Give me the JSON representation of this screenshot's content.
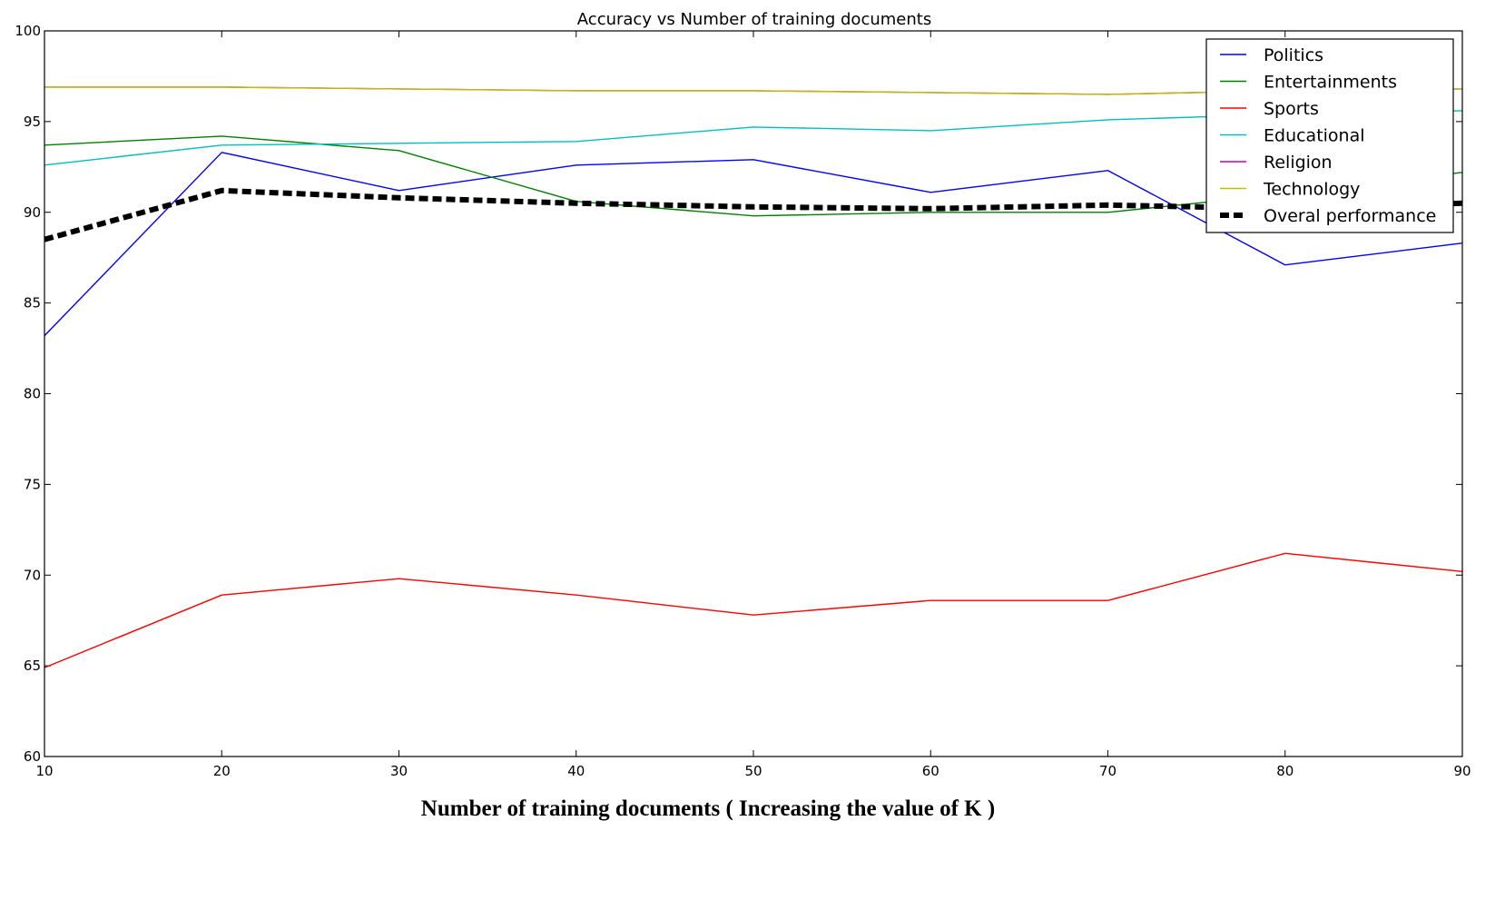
{
  "chart_data": {
    "type": "line",
    "title": "Accuracy vs Number of training documents",
    "xlabel": "Number of training documents ( Increasing the value of K )",
    "ylabel": "",
    "x": [
      10,
      20,
      30,
      40,
      50,
      60,
      70,
      80,
      90
    ],
    "xlim": [
      10,
      90
    ],
    "ylim": [
      60,
      100
    ],
    "xticks": [
      "10",
      "20",
      "30",
      "40",
      "50",
      "60",
      "70",
      "80",
      "90"
    ],
    "yticks": [
      "60",
      "65",
      "70",
      "75",
      "80",
      "85",
      "90",
      "95",
      "100"
    ],
    "grid": false,
    "legend_position": "top-right",
    "series": [
      {
        "name": "Politics",
        "color": "#0000ff",
        "style": "solid",
        "values": [
          83.2,
          93.3,
          91.2,
          92.6,
          92.9,
          91.1,
          92.3,
          87.1,
          88.3
        ]
      },
      {
        "name": "Entertainments",
        "color": "#008000",
        "style": "solid",
        "values": [
          93.7,
          94.2,
          93.4,
          90.6,
          89.8,
          90.0,
          90.0,
          91.0,
          92.2
        ]
      },
      {
        "name": "Sports",
        "color": "#ff0000",
        "style": "solid",
        "values": [
          64.9,
          68.9,
          69.8,
          68.9,
          67.8,
          68.6,
          68.6,
          71.2,
          70.2
        ]
      },
      {
        "name": "Educational",
        "color": "#00bfbf",
        "style": "solid",
        "values": [
          92.6,
          93.7,
          93.8,
          93.9,
          94.7,
          94.5,
          95.1,
          95.4,
          95.6
        ]
      },
      {
        "name": "Religion",
        "color": "#bf00bf",
        "style": "solid",
        "values": [
          96.9,
          96.9,
          96.8,
          96.7,
          96.7,
          96.6,
          96.5,
          96.7,
          96.8
        ]
      },
      {
        "name": "Technology",
        "color": "#bfbf00",
        "style": "solid",
        "values": [
          96.9,
          96.9,
          96.8,
          96.7,
          96.7,
          96.6,
          96.5,
          96.7,
          96.8
        ]
      },
      {
        "name": "Overal performance",
        "color": "#000000",
        "style": "dashed",
        "values": [
          88.5,
          91.2,
          90.8,
          90.5,
          90.3,
          90.2,
          90.4,
          90.2,
          90.5
        ]
      }
    ]
  }
}
